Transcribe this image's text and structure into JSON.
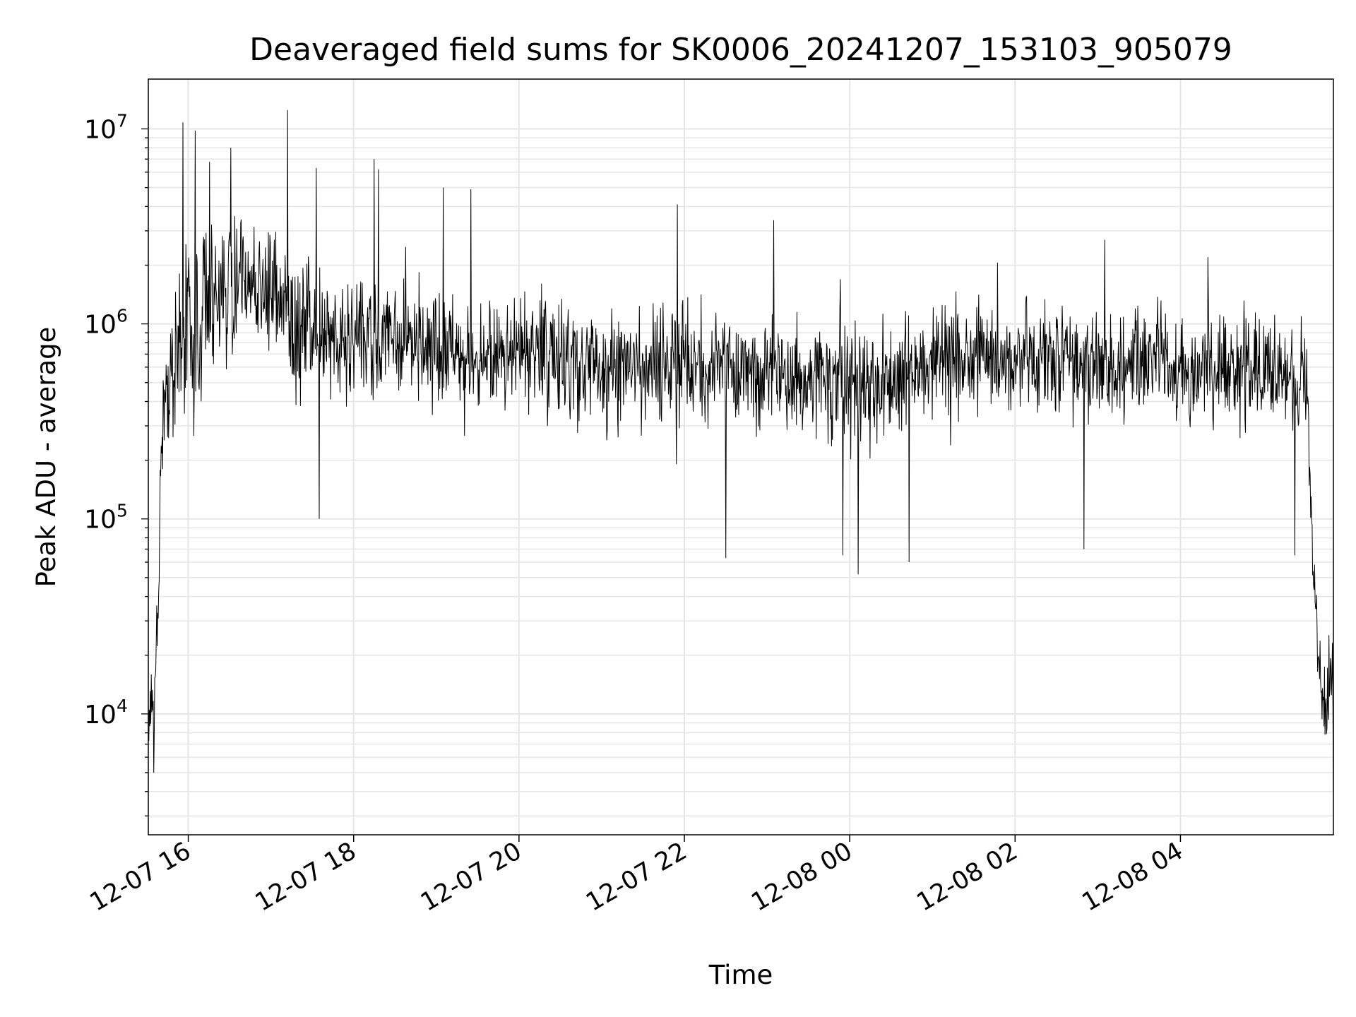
{
  "chart_data": {
    "type": "line",
    "title": "Deaveraged field sums for SK0006_20241207_153103_905079",
    "xlabel": "Time",
    "ylabel": "Peak ADU - average",
    "y_scale": "log",
    "ylim": [
      2400,
      18000000
    ],
    "xlim": [
      "2024-12-07T15:31",
      "2024-12-08T05:51"
    ],
    "grid": true,
    "line_color": "#000000",
    "grid_color": "#e6e6e6",
    "x_ticks": [
      {
        "t": "2024-12-07T16:00",
        "label": "12-07 16"
      },
      {
        "t": "2024-12-07T18:00",
        "label": "12-07 18"
      },
      {
        "t": "2024-12-07T20:00",
        "label": "12-07 20"
      },
      {
        "t": "2024-12-07T22:00",
        "label": "12-07 22"
      },
      {
        "t": "2024-12-08T00:00",
        "label": "12-08 00"
      },
      {
        "t": "2024-12-08T02:00",
        "label": "12-08 02"
      },
      {
        "t": "2024-12-08T04:00",
        "label": "12-08 04"
      }
    ],
    "y_ticks": [
      {
        "value": 10000,
        "base": "10",
        "exp": "4"
      },
      {
        "value": 100000,
        "base": "10",
        "exp": "5"
      },
      {
        "value": 1000000,
        "base": "10",
        "exp": "6"
      },
      {
        "value": 10000000,
        "base": "10",
        "exp": "7"
      }
    ],
    "series": [
      {
        "x": [
          "2024-12-07T15:31",
          "2024-12-07T15:33",
          "2024-12-07T15:35",
          "2024-12-07T15:38",
          "2024-12-07T15:40",
          "2024-12-07T15:42",
          "2024-12-07T15:45",
          "2024-12-07T15:48",
          "2024-12-07T15:52",
          "2024-12-07T15:56",
          "2024-12-07T16:00",
          "2024-12-07T16:05",
          "2024-12-07T16:10",
          "2024-12-07T16:20",
          "2024-12-07T16:30",
          "2024-12-07T16:45",
          "2024-12-07T17:00",
          "2024-12-07T17:15",
          "2024-12-07T17:30",
          "2024-12-07T17:45",
          "2024-12-07T18:00",
          "2024-12-07T18:30",
          "2024-12-07T19:00",
          "2024-12-07T19:30",
          "2024-12-07T20:00",
          "2024-12-07T20:30",
          "2024-12-07T21:00",
          "2024-12-07T21:30",
          "2024-12-07T22:00",
          "2024-12-07T22:30",
          "2024-12-07T23:00",
          "2024-12-07T23:30",
          "2024-12-08T00:00",
          "2024-12-08T00:30",
          "2024-12-08T01:00",
          "2024-12-08T01:30",
          "2024-12-08T02:00",
          "2024-12-08T02:30",
          "2024-12-08T03:00",
          "2024-12-08T03:30",
          "2024-12-08T04:00",
          "2024-12-08T04:30",
          "2024-12-08T05:00",
          "2024-12-08T05:20",
          "2024-12-08T05:30",
          "2024-12-08T05:33",
          "2024-12-08T05:36",
          "2024-12-08T05:40",
          "2024-12-08T05:45",
          "2024-12-08T05:50"
        ],
        "y": [
          8000,
          12000,
          10000,
          40000,
          150000,
          300000,
          500000,
          600000,
          800000,
          900000,
          950000,
          1000000,
          1100000,
          1300000,
          1500000,
          1700000,
          1500000,
          1000000,
          900000,
          850000,
          850000,
          800000,
          750000,
          700000,
          700000,
          650000,
          620000,
          600000,
          650000,
          600000,
          550000,
          500000,
          480000,
          520000,
          600000,
          650000,
          680000,
          650000,
          600000,
          620000,
          600000,
          600000,
          580000,
          550000,
          600000,
          350000,
          60000,
          20000,
          12000,
          15000
        ],
        "spread_decades": [
          0.25,
          0.25,
          0.25,
          0.3,
          0.35,
          0.4,
          0.45,
          0.5,
          0.6,
          0.7,
          0.75,
          0.75,
          0.7,
          0.6,
          0.5,
          0.45,
          0.5,
          0.55,
          0.5,
          0.45,
          0.45,
          0.4,
          0.4,
          0.4,
          0.4,
          0.4,
          0.4,
          0.4,
          0.4,
          0.4,
          0.4,
          0.4,
          0.45,
          0.45,
          0.4,
          0.4,
          0.4,
          0.4,
          0.4,
          0.4,
          0.4,
          0.4,
          0.4,
          0.4,
          0.4,
          0.3,
          0.2,
          0.25,
          0.3,
          0.3
        ],
        "peaks": [
          {
            "t": "2024-12-07T15:56",
            "y": 10800000
          },
          {
            "t": "2024-12-07T16:05",
            "y": 9800000
          },
          {
            "t": "2024-12-07T16:31",
            "y": 8000000
          },
          {
            "t": "2024-12-07T17:12",
            "y": 12500000
          },
          {
            "t": "2024-12-07T17:33",
            "y": 6300000
          },
          {
            "t": "2024-12-07T18:15",
            "y": 7000000
          },
          {
            "t": "2024-12-07T18:18",
            "y": 6200000
          },
          {
            "t": "2024-12-07T19:05",
            "y": 5000000
          },
          {
            "t": "2024-12-07T19:25",
            "y": 4900000
          },
          {
            "t": "2024-12-07T21:55",
            "y": 4100000
          },
          {
            "t": "2024-12-07T23:05",
            "y": 3400000
          },
          {
            "t": "2024-12-08T03:05",
            "y": 2700000
          },
          {
            "t": "2024-12-08T04:20",
            "y": 2200000
          }
        ],
        "dips": [
          {
            "t": "2024-12-07T15:35",
            "y": 5000
          },
          {
            "t": "2024-12-07T17:35",
            "y": 100000
          },
          {
            "t": "2024-12-07T22:30",
            "y": 63000
          },
          {
            "t": "2024-12-07T23:55",
            "y": 65000
          },
          {
            "t": "2024-12-08T00:06",
            "y": 52000
          },
          {
            "t": "2024-12-08T00:43",
            "y": 60000
          },
          {
            "t": "2024-12-08T02:50",
            "y": 70000
          },
          {
            "t": "2024-12-08T05:23",
            "y": 65000
          },
          {
            "t": "2024-12-08T05:51",
            "y": 3600
          }
        ]
      }
    ]
  }
}
